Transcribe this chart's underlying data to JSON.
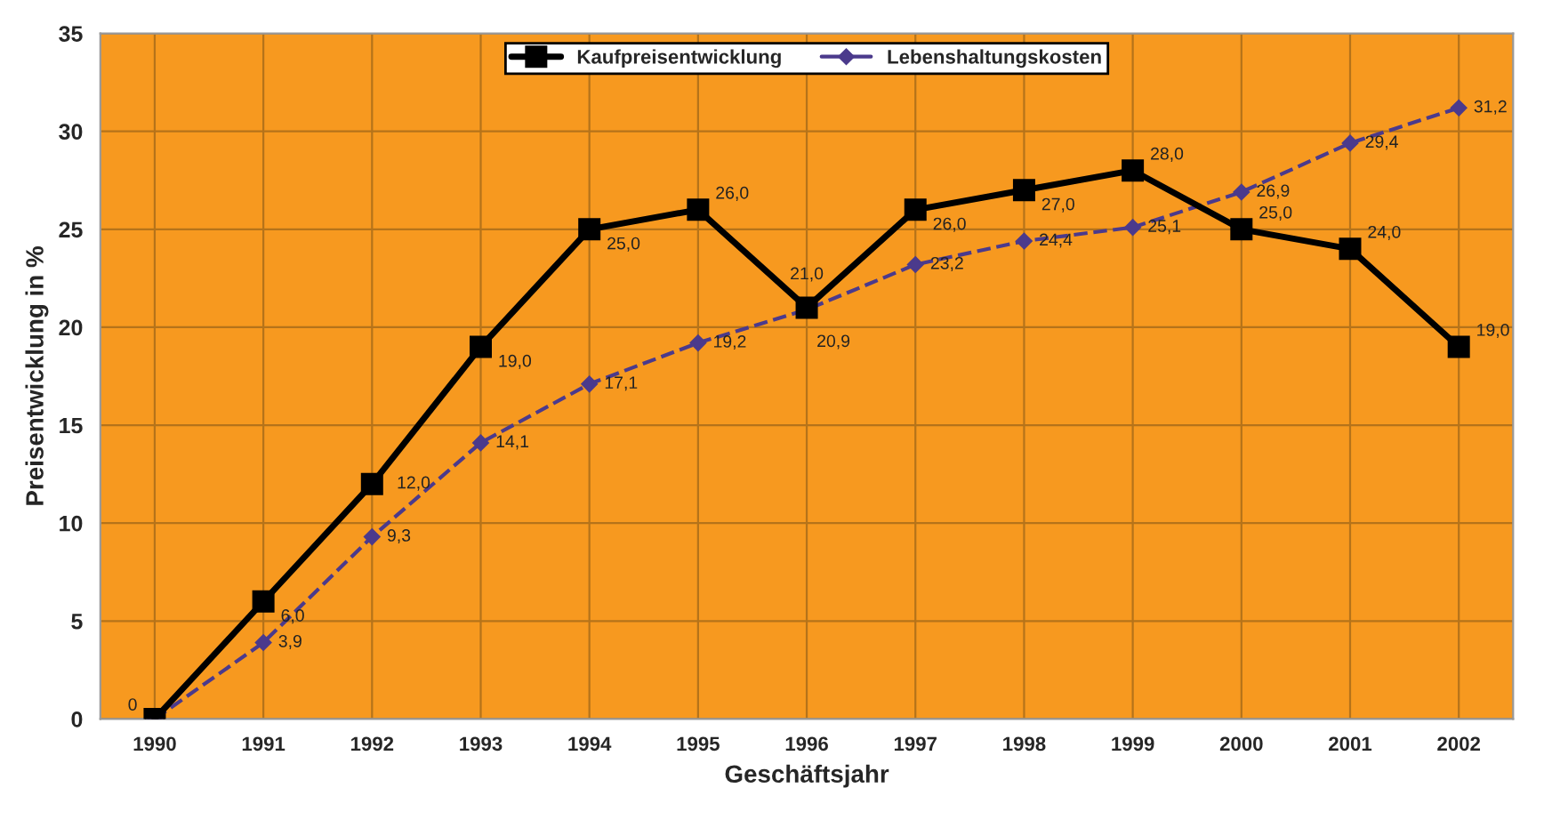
{
  "chart_data": {
    "type": "line",
    "xlabel": "Geschäftsjahr",
    "ylabel": "Preisentwicklung in %",
    "categories": [
      "1990",
      "1991",
      "1992",
      "1993",
      "1994",
      "1995",
      "1996",
      "1997",
      "1998",
      "1999",
      "2000",
      "2001",
      "2002"
    ],
    "series": [
      {
        "name": "Kaufpreisentwicklung",
        "color": "#000000",
        "marker": "square",
        "line_style": "solid",
        "values": [
          0,
          6.0,
          12.0,
          19.0,
          25.0,
          26.0,
          21.0,
          26.0,
          27.0,
          28.0,
          25.0,
          24.0,
          19.0
        ],
        "value_labels": [
          "0",
          "6,0",
          "12,0",
          "19,0",
          "25,0",
          "26,0",
          "21,0",
          "26,0",
          "27,0",
          "28,0",
          "25,0",
          "24,0",
          "19,0"
        ]
      },
      {
        "name": "Lebenshaltungskosten",
        "color": "#4b3a8c",
        "marker": "diamond",
        "line_style": "dashed",
        "values": [
          0,
          3.9,
          9.3,
          14.1,
          17.1,
          19.2,
          20.9,
          23.2,
          24.4,
          25.1,
          26.9,
          29.4,
          31.2
        ],
        "value_labels": [
          null,
          "3,9",
          "9,3",
          "14,1",
          "17,1",
          "19,2",
          "20,9",
          "23,2",
          "24,4",
          "25,1",
          "26,9",
          "29,4",
          "31,2"
        ]
      }
    ],
    "ylim": [
      0,
      35
    ],
    "yticks": [
      0,
      5,
      10,
      15,
      20,
      25,
      30,
      35
    ],
    "grid": true,
    "legend": "top"
  }
}
